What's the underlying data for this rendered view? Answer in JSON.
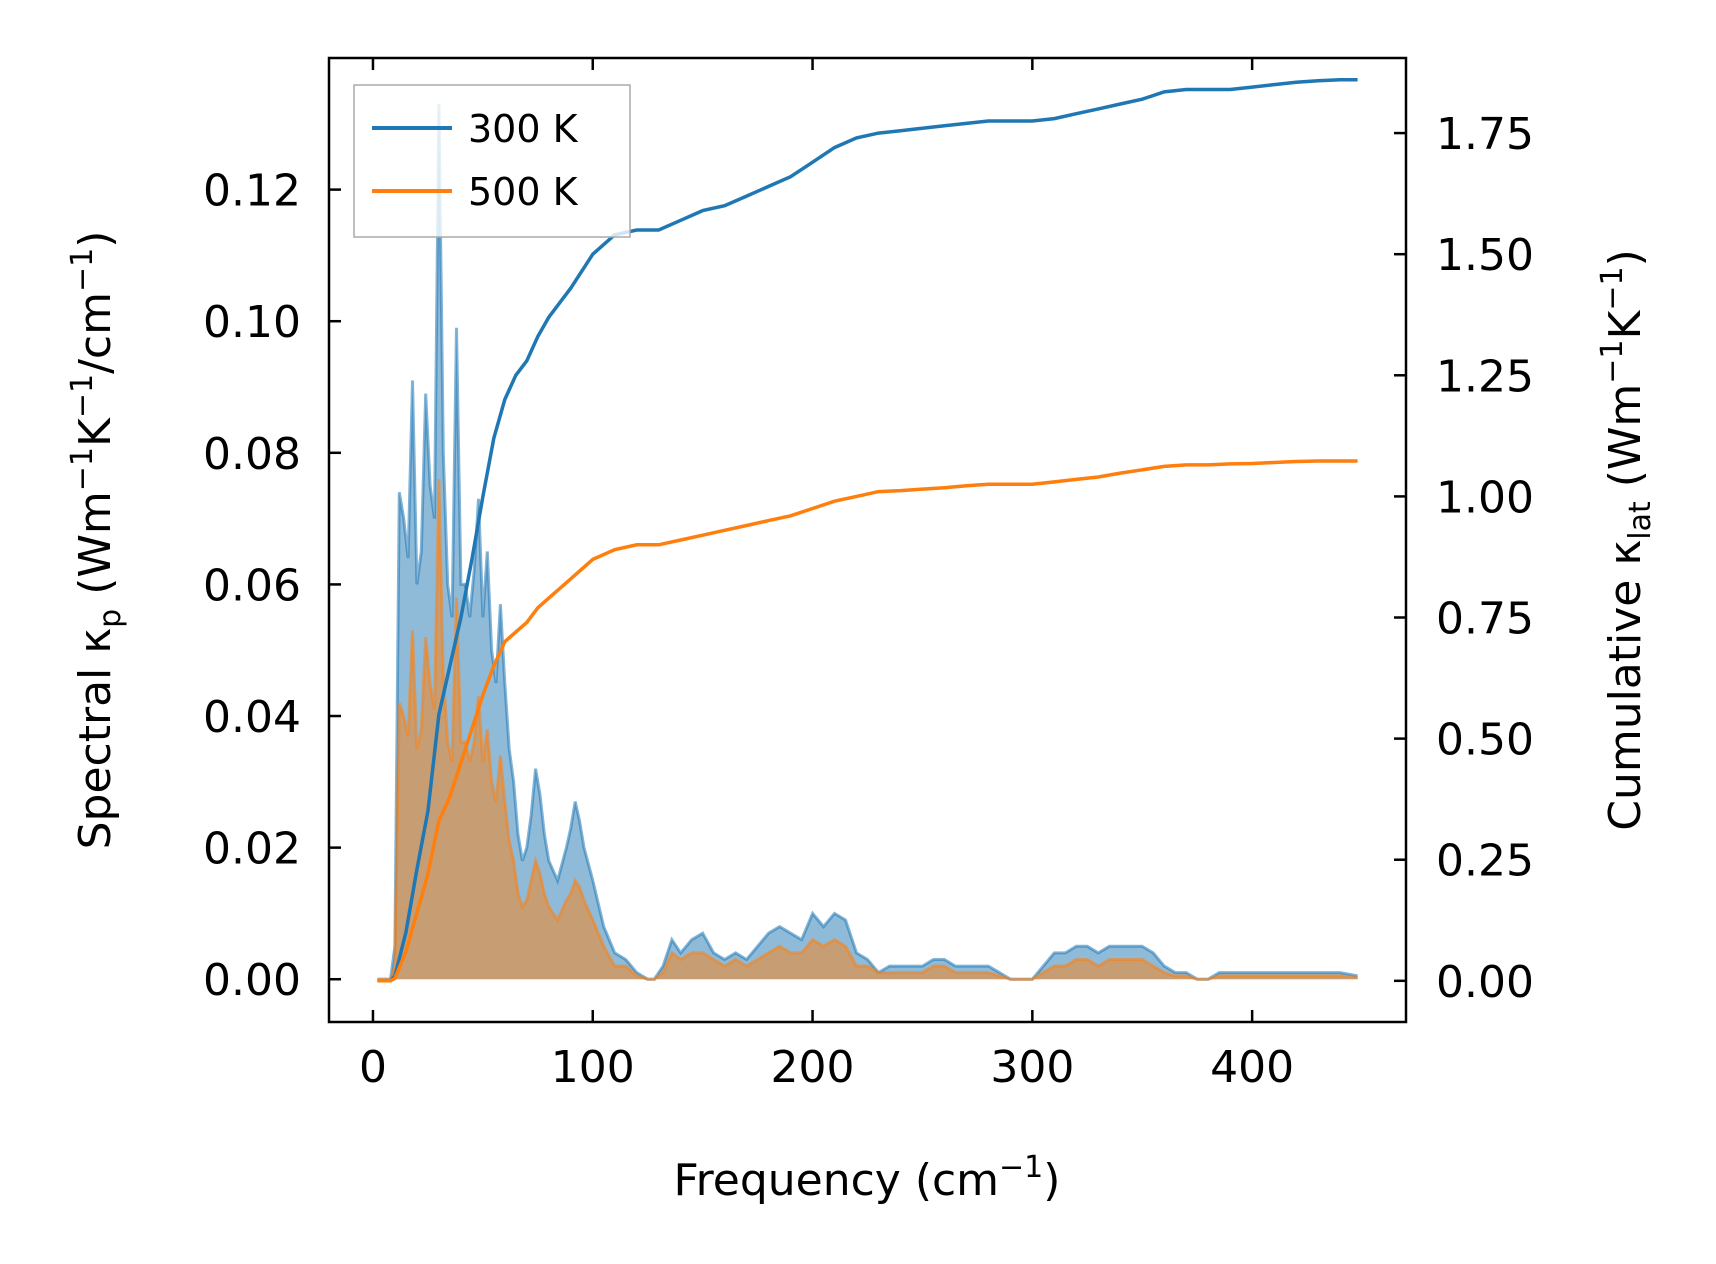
{
  "chart_data": {
    "type": "line",
    "title": "",
    "xlabel": "Frequency (cm",
    "xlabel_sup": "−1",
    "xlabel_end": ")",
    "ylabel_left": "Spectral κ",
    "ylabel_left_sub": "p",
    "ylabel_left_units": " (Wm",
    "ylabel_left_sup1": "−1",
    "ylabel_left_mid": "K",
    "ylabel_left_sup2": "−1",
    "ylabel_left_mid2": "/cm",
    "ylabel_left_sup3": "−1",
    "ylabel_left_end": ")",
    "ylabel_right": "Cumulative κ",
    "ylabel_right_sub": "lat",
    "ylabel_right_units": " (Wm",
    "ylabel_right_sup1": "−1",
    "ylabel_right_mid": "K",
    "ylabel_right_sup2": "−1",
    "ylabel_right_end": ")",
    "xlim": [
      -20,
      470
    ],
    "ylim_left": [
      -0.0065,
      0.14
    ],
    "ylim_right": [
      -0.085,
      1.905
    ],
    "xticks": [
      0,
      100,
      200,
      300,
      400
    ],
    "xtick_labels": [
      "0",
      "100",
      "200",
      "300",
      "400"
    ],
    "yticks_left": [
      0.0,
      0.02,
      0.04,
      0.06,
      0.08,
      0.1,
      0.12
    ],
    "ytick_labels_left": [
      "0.00",
      "0.02",
      "0.04",
      "0.06",
      "0.08",
      "0.10",
      "0.12"
    ],
    "yticks_right": [
      0.0,
      0.25,
      0.5,
      0.75,
      1.0,
      1.25,
      1.5,
      1.75
    ],
    "ytick_labels_right": [
      "0.00",
      "0.25",
      "0.50",
      "0.75",
      "1.00",
      "1.25",
      "1.50",
      "1.75"
    ],
    "legend": {
      "position": "top-left",
      "entries": [
        "300 K",
        "500 K"
      ]
    },
    "colors": {
      "s300": "#1f77b4",
      "s500": "#ff7f0e",
      "fill300": "#1f77b4",
      "fill500": "#ff7f0e"
    },
    "spectral": [
      {
        "name": "300 K",
        "x": [
          2,
          8,
          10,
          12,
          14,
          16,
          18,
          20,
          22,
          24,
          26,
          28,
          30,
          32,
          34,
          36,
          38,
          40,
          42,
          44,
          46,
          48,
          50,
          52,
          54,
          56,
          58,
          60,
          62,
          64,
          66,
          68,
          70,
          72,
          74,
          76,
          78,
          80,
          84,
          88,
          90,
          92,
          94,
          96,
          100,
          105,
          110,
          115,
          120,
          125,
          128,
          132,
          136,
          140,
          145,
          150,
          155,
          160,
          165,
          170,
          175,
          180,
          185,
          190,
          195,
          200,
          205,
          210,
          215,
          220,
          225,
          230,
          235,
          240,
          245,
          250,
          255,
          260,
          265,
          270,
          275,
          280,
          285,
          290,
          295,
          300,
          305,
          310,
          315,
          320,
          325,
          330,
          335,
          340,
          345,
          350,
          355,
          360,
          365,
          370,
          375,
          380,
          385,
          390,
          395,
          400,
          405,
          410,
          415,
          420,
          425,
          430,
          435,
          440,
          448
        ],
        "values": [
          0,
          0,
          0.005,
          0.074,
          0.07,
          0.064,
          0.091,
          0.06,
          0.065,
          0.089,
          0.075,
          0.07,
          0.133,
          0.08,
          0.06,
          0.055,
          0.099,
          0.06,
          0.06,
          0.055,
          0.062,
          0.073,
          0.055,
          0.065,
          0.05,
          0.045,
          0.057,
          0.045,
          0.035,
          0.03,
          0.022,
          0.018,
          0.02,
          0.025,
          0.032,
          0.028,
          0.022,
          0.018,
          0.015,
          0.02,
          0.023,
          0.027,
          0.024,
          0.02,
          0.015,
          0.008,
          0.004,
          0.003,
          0.001,
          0,
          0,
          0.002,
          0.006,
          0.004,
          0.006,
          0.007,
          0.004,
          0.003,
          0.004,
          0.003,
          0.005,
          0.007,
          0.008,
          0.007,
          0.006,
          0.01,
          0.008,
          0.01,
          0.009,
          0.004,
          0.003,
          0.001,
          0.002,
          0.002,
          0.002,
          0.002,
          0.003,
          0.003,
          0.002,
          0.002,
          0.002,
          0.002,
          0.001,
          0,
          0,
          0,
          0.002,
          0.004,
          0.004,
          0.005,
          0.005,
          0.004,
          0.005,
          0.005,
          0.005,
          0.005,
          0.004,
          0.002,
          0.001,
          0.001,
          0,
          0,
          0.001,
          0.001,
          0.001,
          0.001,
          0.001,
          0.001,
          0.001,
          0.001,
          0.001,
          0.001,
          0.001,
          0.001,
          0.0005
        ]
      },
      {
        "name": "500 K",
        "x": [
          2,
          8,
          10,
          12,
          14,
          16,
          18,
          20,
          22,
          24,
          26,
          28,
          30,
          32,
          34,
          36,
          38,
          40,
          42,
          44,
          46,
          48,
          50,
          52,
          54,
          56,
          58,
          60,
          62,
          64,
          66,
          68,
          70,
          72,
          74,
          76,
          78,
          80,
          84,
          88,
          90,
          92,
          94,
          96,
          100,
          105,
          110,
          115,
          120,
          125,
          128,
          132,
          136,
          140,
          145,
          150,
          155,
          160,
          165,
          170,
          175,
          180,
          185,
          190,
          195,
          200,
          205,
          210,
          215,
          220,
          225,
          230,
          235,
          240,
          245,
          250,
          255,
          260,
          265,
          270,
          275,
          280,
          285,
          290,
          295,
          300,
          305,
          310,
          315,
          320,
          325,
          330,
          335,
          340,
          345,
          350,
          355,
          360,
          365,
          370,
          375,
          380,
          385,
          390,
          395,
          400,
          405,
          410,
          415,
          420,
          425,
          430,
          435,
          440,
          448
        ],
        "values": [
          0,
          0,
          0.002,
          0.042,
          0.04,
          0.037,
          0.053,
          0.035,
          0.038,
          0.052,
          0.045,
          0.041,
          0.076,
          0.046,
          0.036,
          0.033,
          0.058,
          0.036,
          0.036,
          0.033,
          0.036,
          0.043,
          0.033,
          0.038,
          0.03,
          0.027,
          0.034,
          0.027,
          0.021,
          0.018,
          0.013,
          0.011,
          0.012,
          0.015,
          0.018,
          0.016,
          0.013,
          0.011,
          0.009,
          0.012,
          0.013,
          0.015,
          0.014,
          0.012,
          0.009,
          0.005,
          0.002,
          0.002,
          0.0005,
          0,
          0,
          0.001,
          0.004,
          0.003,
          0.004,
          0.004,
          0.003,
          0.002,
          0.003,
          0.002,
          0.003,
          0.004,
          0.005,
          0.004,
          0.004,
          0.006,
          0.005,
          0.006,
          0.005,
          0.002,
          0.002,
          0.001,
          0.001,
          0.001,
          0.001,
          0.001,
          0.002,
          0.002,
          0.001,
          0.001,
          0.001,
          0.001,
          0.0005,
          0,
          0,
          0,
          0.001,
          0.002,
          0.002,
          0.003,
          0.003,
          0.002,
          0.003,
          0.003,
          0.003,
          0.003,
          0.002,
          0.001,
          0.0005,
          0.0005,
          0,
          0,
          0.0005,
          0.0005,
          0.0005,
          0.0005,
          0.0005,
          0.0005,
          0.0005,
          0.0005,
          0.0005,
          0.0005,
          0.0005,
          0.0005,
          0.0003
        ]
      }
    ],
    "cumulative": [
      {
        "name": "300 K",
        "x": [
          2,
          8,
          10,
          15,
          20,
          25,
          30,
          35,
          40,
          45,
          50,
          55,
          60,
          65,
          70,
          75,
          80,
          90,
          100,
          110,
          120,
          130,
          140,
          150,
          160,
          170,
          180,
          190,
          200,
          210,
          220,
          230,
          240,
          250,
          260,
          270,
          280,
          290,
          300,
          310,
          320,
          330,
          340,
          350,
          360,
          370,
          380,
          390,
          400,
          410,
          420,
          430,
          440,
          448
        ],
        "values": [
          0,
          0,
          0.01,
          0.1,
          0.23,
          0.35,
          0.55,
          0.65,
          0.75,
          0.87,
          1.0,
          1.12,
          1.2,
          1.25,
          1.28,
          1.33,
          1.37,
          1.43,
          1.5,
          1.54,
          1.55,
          1.55,
          1.57,
          1.59,
          1.6,
          1.62,
          1.64,
          1.66,
          1.69,
          1.72,
          1.74,
          1.75,
          1.755,
          1.76,
          1.765,
          1.77,
          1.775,
          1.775,
          1.775,
          1.78,
          1.79,
          1.8,
          1.81,
          1.82,
          1.835,
          1.84,
          1.84,
          1.84,
          1.845,
          1.85,
          1.855,
          1.858,
          1.86,
          1.86
        ]
      },
      {
        "name": "500 K",
        "x": [
          2,
          8,
          10,
          15,
          20,
          25,
          30,
          35,
          40,
          45,
          50,
          55,
          60,
          65,
          70,
          75,
          80,
          90,
          100,
          110,
          120,
          130,
          140,
          150,
          160,
          170,
          180,
          190,
          200,
          210,
          220,
          230,
          240,
          250,
          260,
          270,
          280,
          290,
          300,
          310,
          320,
          330,
          340,
          350,
          360,
          370,
          380,
          390,
          400,
          410,
          420,
          430,
          440,
          448
        ],
        "values": [
          0,
          0,
          0.005,
          0.06,
          0.14,
          0.22,
          0.33,
          0.38,
          0.45,
          0.52,
          0.59,
          0.65,
          0.7,
          0.72,
          0.74,
          0.77,
          0.79,
          0.83,
          0.87,
          0.89,
          0.9,
          0.9,
          0.91,
          0.92,
          0.93,
          0.94,
          0.95,
          0.96,
          0.975,
          0.99,
          1.0,
          1.01,
          1.012,
          1.015,
          1.018,
          1.022,
          1.025,
          1.025,
          1.025,
          1.03,
          1.035,
          1.04,
          1.048,
          1.055,
          1.062,
          1.065,
          1.065,
          1.067,
          1.068,
          1.07,
          1.072,
          1.073,
          1.073,
          1.073
        ]
      }
    ]
  }
}
